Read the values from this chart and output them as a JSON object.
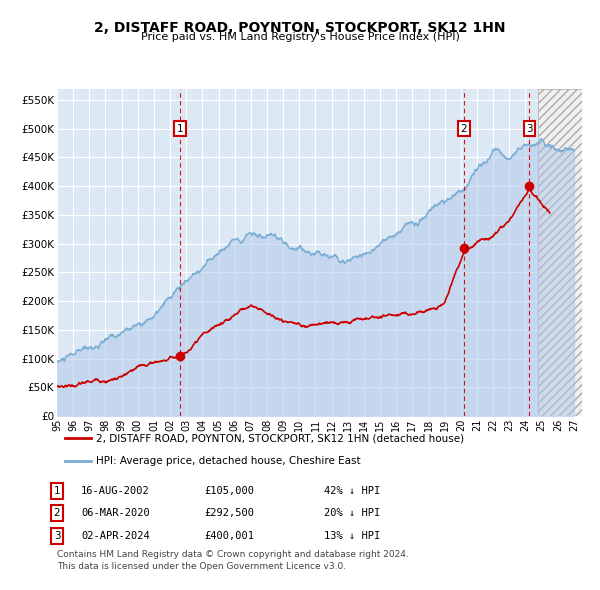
{
  "title": "2, DISTAFF ROAD, POYNTON, STOCKPORT, SK12 1HN",
  "subtitle": "Price paid vs. HM Land Registry's House Price Index (HPI)",
  "ylim": [
    0,
    570000
  ],
  "yticks": [
    0,
    50000,
    100000,
    150000,
    200000,
    250000,
    300000,
    350000,
    400000,
    450000,
    500000,
    550000
  ],
  "ytick_labels": [
    "£0",
    "£50K",
    "£100K",
    "£150K",
    "£200K",
    "£250K",
    "£300K",
    "£350K",
    "£400K",
    "£450K",
    "£500K",
    "£550K"
  ],
  "xlim_start": 1995.0,
  "xlim_end": 2027.5,
  "hpi_color": "#aec6e8",
  "hpi_line_color": "#7aaed4",
  "price_color": "#cc0000",
  "plot_bg": "#dce9f5",
  "grid_color": "#ffffff",
  "transactions": [
    {
      "num": 1,
      "date_str": "16-AUG-2002",
      "price": 105000,
      "pct": "42%",
      "x": 2002.62
    },
    {
      "num": 2,
      "date_str": "06-MAR-2020",
      "price": 292500,
      "pct": "20%",
      "x": 2020.18
    },
    {
      "num": 3,
      "date_str": "02-APR-2024",
      "price": 400001,
      "pct": "13%",
      "x": 2024.25
    }
  ],
  "legend_line1": "2, DISTAFF ROAD, POYNTON, STOCKPORT, SK12 1HN (detached house)",
  "legend_line2": "HPI: Average price, detached house, Cheshire East",
  "footer1": "Contains HM Land Registry data © Crown copyright and database right 2024.",
  "footer2": "This data is licensed under the Open Government Licence v3.0.",
  "future_cutoff": 2024.75
}
